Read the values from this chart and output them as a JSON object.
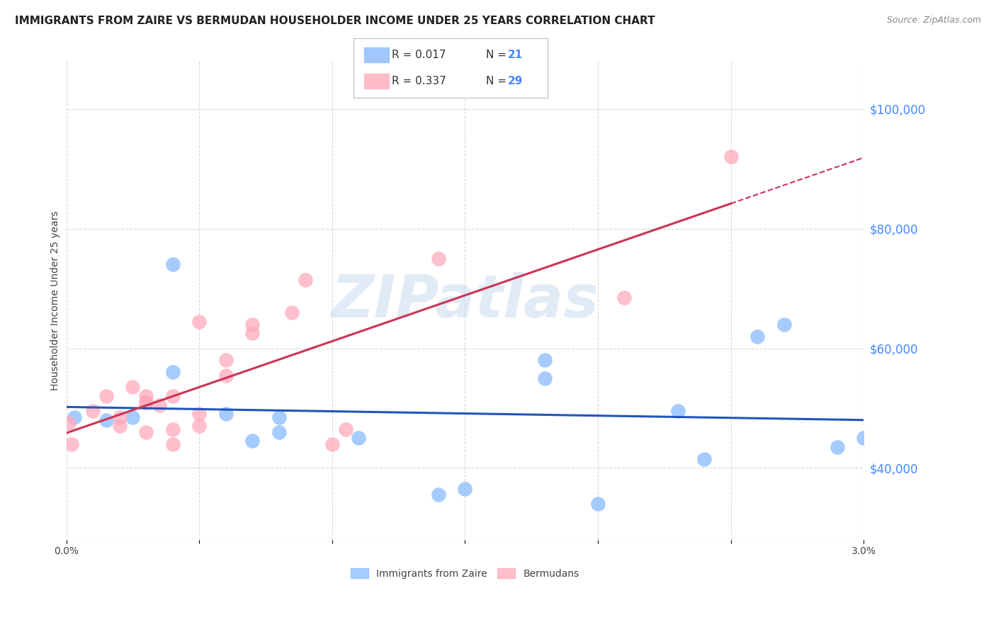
{
  "title": "IMMIGRANTS FROM ZAIRE VS BERMUDAN HOUSEHOLDER INCOME UNDER 25 YEARS CORRELATION CHART",
  "source": "Source: ZipAtlas.com",
  "ylabel": "Householder Income Under 25 years",
  "xlim": [
    0.0,
    0.03
  ],
  "ylim": [
    28000,
    108000
  ],
  "yticks": [
    40000,
    60000,
    80000,
    100000
  ],
  "ytick_labels": [
    "$40,000",
    "$60,000",
    "$80,000",
    "$100,000"
  ],
  "xticks": [
    0.0,
    0.005,
    0.01,
    0.015,
    0.02,
    0.025,
    0.03
  ],
  "xtick_labels": [
    "0.0%",
    "",
    "",
    "",
    "",
    "",
    "3.0%"
  ],
  "background_color": "#ffffff",
  "grid_color": "#d8d8d8",
  "blue_color": "#88bbff",
  "pink_color": "#ffaabb",
  "line_blue": "#2255bb",
  "line_pink": "#cc3355",
  "watermark": "ZIPatlas",
  "legend_label1": "Immigrants from Zaire",
  "legend_label2": "Bermudans",
  "legend_R1": "0.017",
  "legend_N1": "21",
  "legend_R2": "0.337",
  "legend_N2": "29",
  "blue_x": [
    0.0003,
    0.0015,
    0.0025,
    0.004,
    0.004,
    0.006,
    0.007,
    0.008,
    0.008,
    0.011,
    0.014,
    0.015,
    0.018,
    0.018,
    0.02,
    0.023,
    0.024,
    0.026,
    0.027,
    0.029,
    0.03
  ],
  "blue_y": [
    48500,
    48000,
    48500,
    56000,
    74000,
    49000,
    44500,
    46000,
    48500,
    45000,
    35500,
    36500,
    58000,
    55000,
    34000,
    49500,
    41500,
    62000,
    64000,
    43500,
    45000
  ],
  "pink_x": [
    0.0001,
    0.0002,
    0.001,
    0.0015,
    0.002,
    0.002,
    0.0025,
    0.003,
    0.003,
    0.003,
    0.003,
    0.0035,
    0.004,
    0.004,
    0.004,
    0.005,
    0.005,
    0.005,
    0.006,
    0.006,
    0.007,
    0.007,
    0.0085,
    0.009,
    0.01,
    0.0105,
    0.014,
    0.021,
    0.025
  ],
  "pink_y": [
    47500,
    44000,
    49500,
    52000,
    47000,
    48500,
    53500,
    51000,
    51000,
    52000,
    46000,
    50500,
    44000,
    46500,
    52000,
    64500,
    47000,
    49000,
    55500,
    58000,
    62500,
    64000,
    66000,
    71500,
    44000,
    46500,
    75000,
    68500,
    92000
  ],
  "title_fontsize": 11,
  "source_fontsize": 9,
  "axis_label_fontsize": 10,
  "tick_fontsize": 10,
  "legend_fontsize": 11
}
